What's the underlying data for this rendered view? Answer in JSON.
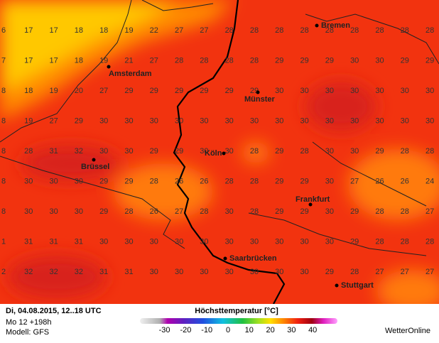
{
  "grid": {
    "rows": [
      [
        6,
        17,
        17,
        18,
        18,
        19,
        22,
        27,
        27,
        28,
        28,
        28,
        28,
        28,
        28,
        28,
        28,
        28
      ],
      [
        7,
        17,
        17,
        18,
        19,
        21,
        27,
        28,
        28,
        28,
        28,
        29,
        29,
        29,
        30,
        30,
        29,
        29
      ],
      [
        8,
        18,
        19,
        20,
        27,
        29,
        29,
        29,
        29,
        29,
        29,
        30,
        30,
        30,
        30,
        30,
        30,
        30
      ],
      [
        8,
        19,
        27,
        29,
        30,
        30,
        30,
        30,
        30,
        30,
        30,
        30,
        30,
        30,
        30,
        30,
        30,
        30
      ],
      [
        8,
        28,
        31,
        32,
        30,
        30,
        29,
        29,
        30,
        30,
        28,
        29,
        28,
        30,
        30,
        29,
        28,
        28
      ],
      [
        8,
        30,
        30,
        30,
        29,
        29,
        28,
        26,
        26,
        28,
        28,
        29,
        29,
        30,
        27,
        26,
        26,
        24
      ],
      [
        8,
        30,
        30,
        30,
        29,
        28,
        26,
        27,
        28,
        30,
        28,
        29,
        29,
        30,
        29,
        28,
        28,
        27
      ],
      [
        1,
        31,
        31,
        31,
        30,
        30,
        30,
        30,
        30,
        30,
        30,
        30,
        30,
        30,
        29,
        28,
        28,
        28
      ],
      [
        2,
        32,
        32,
        32,
        31,
        31,
        30,
        30,
        30,
        30,
        30,
        30,
        30,
        29,
        28,
        27,
        27,
        27
      ]
    ]
  },
  "cities": [
    {
      "name": "Bremen"
    },
    {
      "name": "Amsterdam"
    },
    {
      "name": "Münster"
    },
    {
      "name": "Köln"
    },
    {
      "name": "Brüssel"
    },
    {
      "name": "Frankfurt"
    },
    {
      "name": "Saarbrücken"
    },
    {
      "name": "Stuttgart"
    }
  ],
  "footer": {
    "date": "Di, 04.08.2015, 12..18 UTC",
    "run": "Mo 12 +198h",
    "model": "Modell: GFS",
    "brand": "WetterOnline"
  },
  "legend": {
    "title": "Höchsttemperatur [°C]",
    "ticks": [
      -30,
      -20,
      -10,
      0,
      10,
      20,
      30,
      40
    ]
  }
}
